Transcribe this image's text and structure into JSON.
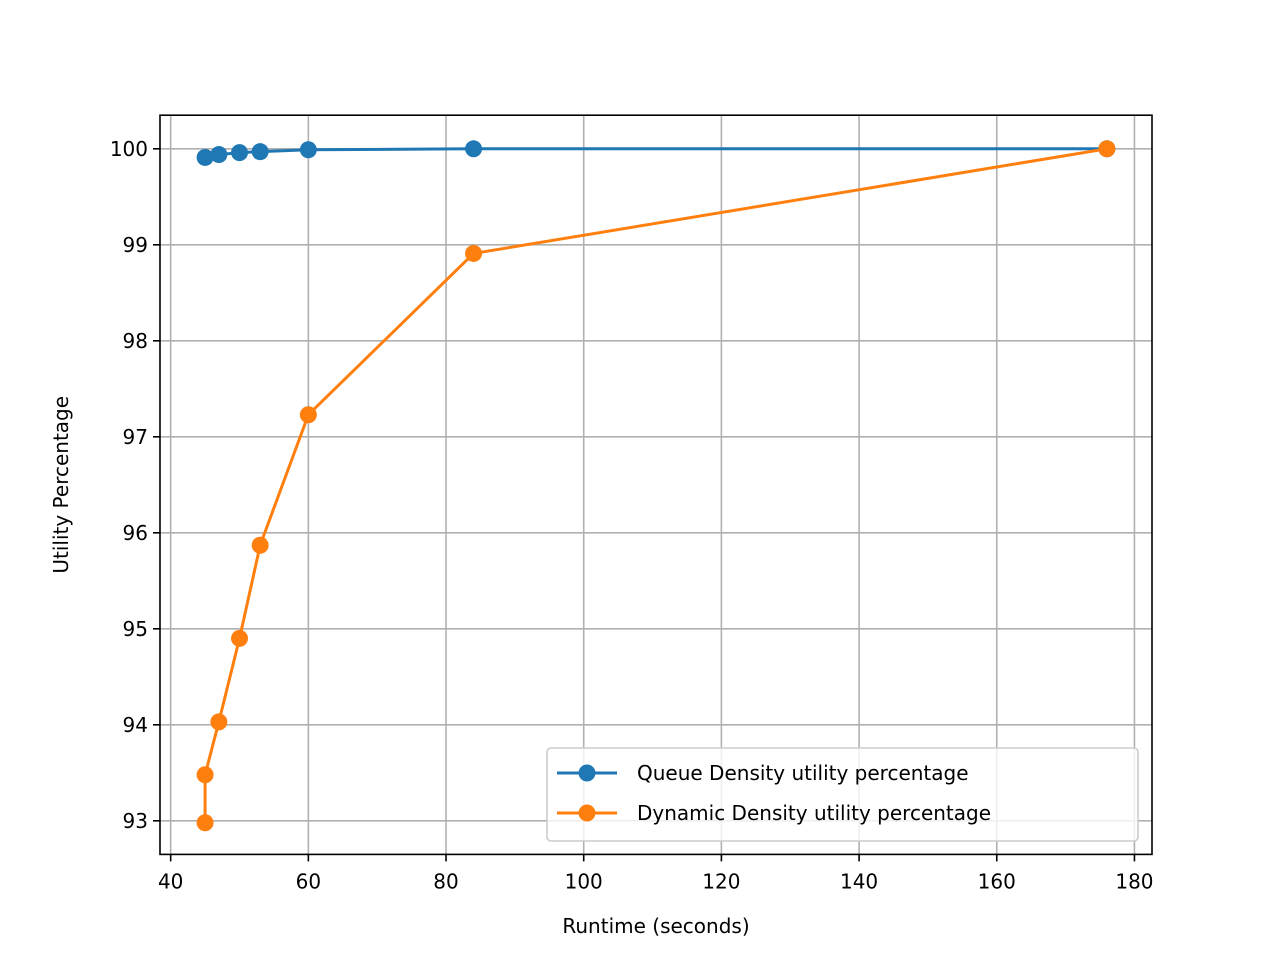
{
  "chart_data": {
    "type": "line",
    "title": "",
    "xlabel": "Runtime (seconds)",
    "ylabel": "Utility Percentage",
    "xlim": [
      38.45,
      182.55
    ],
    "ylim": [
      92.65,
      100.35
    ],
    "xticks": [
      40,
      60,
      80,
      100,
      120,
      140,
      160,
      180
    ],
    "yticks": [
      93,
      94,
      95,
      96,
      97,
      98,
      99,
      100
    ],
    "grid": true,
    "legend_position": "lower right",
    "series": [
      {
        "name": "Queue Density utility percentage",
        "color": "#1f77b4",
        "marker": "circle",
        "points": [
          {
            "x": 45,
            "y": 99.91
          },
          {
            "x": 47,
            "y": 99.94
          },
          {
            "x": 50,
            "y": 99.96
          },
          {
            "x": 53,
            "y": 99.97
          },
          {
            "x": 60,
            "y": 99.99
          },
          {
            "x": 84,
            "y": 100.0
          },
          {
            "x": 176,
            "y": 100.0
          }
        ]
      },
      {
        "name": "Dynamic Density utility percentage",
        "color": "#ff7f0e",
        "marker": "circle",
        "points": [
          {
            "x": 45,
            "y": 92.98
          },
          {
            "x": 45,
            "y": 93.48
          },
          {
            "x": 47,
            "y": 94.03
          },
          {
            "x": 50,
            "y": 94.9
          },
          {
            "x": 53,
            "y": 95.87
          },
          {
            "x": 60,
            "y": 97.23
          },
          {
            "x": 84,
            "y": 98.91
          },
          {
            "x": 176,
            "y": 100.0
          }
        ]
      }
    ]
  }
}
